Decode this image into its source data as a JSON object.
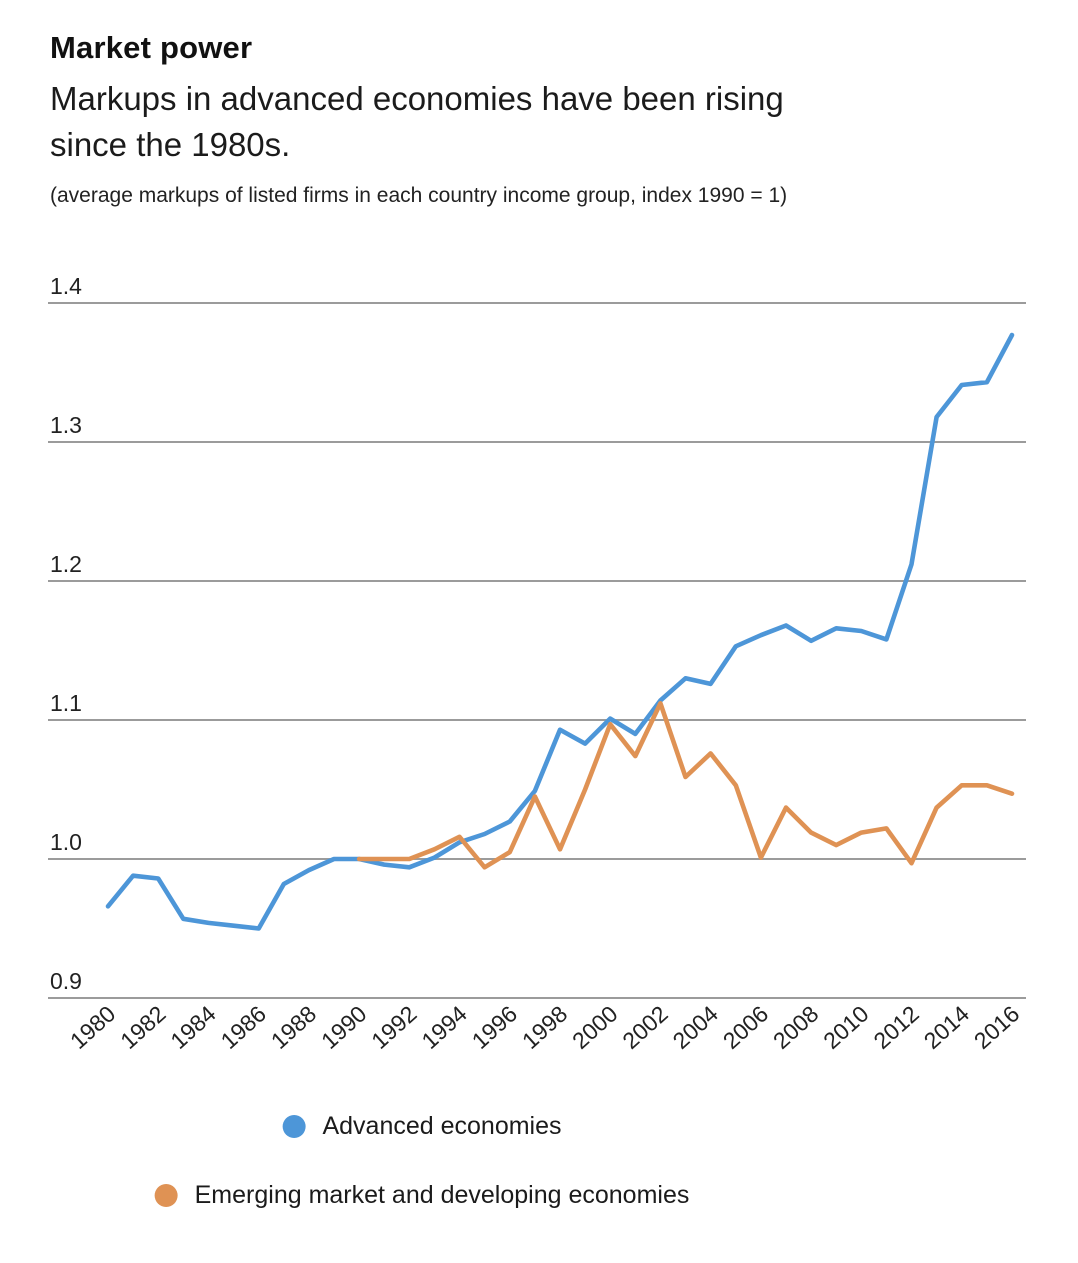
{
  "header": {
    "title": "Market power",
    "subtitle_lines": [
      "Markups in advanced economies have been rising",
      "since the 1980s."
    ],
    "note": "(average markups of listed firms in each country income group, index 1990 = 1)"
  },
  "chart_data": {
    "type": "line",
    "title": "Market power",
    "subtitle": "Markups in advanced economies have been rising since the 1980s.",
    "unit_note": "average markups of listed firms in each country income group, index 1990 = 1",
    "x_start": 1980,
    "x_end": 2016,
    "xtick_labels": [
      "1980",
      "1982",
      "1984",
      "1986",
      "1988",
      "1990",
      "1992",
      "1994",
      "1996",
      "1998",
      "2000",
      "2002",
      "2004",
      "2006",
      "2008",
      "2010",
      "2012",
      "2014",
      "2016"
    ],
    "ytick_labels": [
      "0.9",
      "1.0",
      "1.1",
      "1.2",
      "1.3",
      "1.4"
    ],
    "ylim": [
      0.9,
      1.4
    ],
    "grid": true,
    "legend_position": "bottom",
    "series": [
      {
        "name": "Advanced economies",
        "color": "#4D96D8",
        "start_year": 1980,
        "values": [
          0.966,
          0.988,
          0.986,
          0.957,
          0.954,
          0.952,
          0.95,
          0.982,
          0.992,
          1.0,
          1.0,
          0.996,
          0.994,
          1.001,
          1.012,
          1.018,
          1.027,
          1.049,
          1.093,
          1.083,
          1.101,
          1.09,
          1.114,
          1.13,
          1.126,
          1.153,
          1.161,
          1.168,
          1.157,
          1.166,
          1.164,
          1.158,
          1.212,
          1.318,
          1.341,
          1.343,
          1.377
        ]
      },
      {
        "name": "Emerging market and developing economies",
        "color": "#DF9254",
        "start_year": 1990,
        "values": [
          1.0,
          1.0,
          1.0,
          1.007,
          1.016,
          0.994,
          1.005,
          1.045,
          1.007,
          1.05,
          1.097,
          1.074,
          1.112,
          1.059,
          1.076,
          1.053,
          1.001,
          1.037,
          1.019,
          1.01,
          1.019,
          1.022,
          0.997,
          1.037,
          1.053,
          1.053,
          1.047
        ]
      }
    ]
  }
}
